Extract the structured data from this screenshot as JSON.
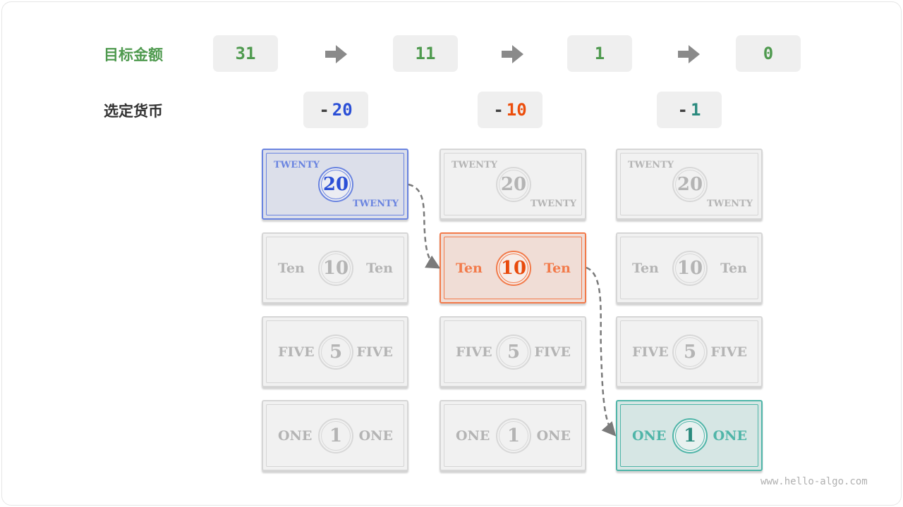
{
  "labels": {
    "target": "目标金额",
    "selected": "选定货币"
  },
  "targets": [
    "31",
    "11",
    "1",
    "0"
  ],
  "selections": [
    {
      "sign": "-",
      "value": "20",
      "color": "#2b4fd6"
    },
    {
      "sign": "-",
      "value": "10",
      "color": "#ec4e0c"
    },
    {
      "sign": "-",
      "value": "1",
      "color": "#2a8a7e"
    }
  ],
  "colors": {
    "target": "#4f9a4f",
    "label": "#333333",
    "arrow": "#8a8a8a",
    "box": "#efefef"
  },
  "denominations": [
    {
      "value": "20",
      "word": "TWENTY"
    },
    {
      "value": "10",
      "word": "Ten"
    },
    {
      "value": "5",
      "word": "FIVE"
    },
    {
      "value": "1",
      "word": "ONE"
    }
  ],
  "selected_bills": [
    {
      "column": 0,
      "denomination": "20",
      "theme": {
        "border": "#6a84e0",
        "bg": "#dcdfea",
        "text": "#6a84e0",
        "coin": "#2b4fd6"
      }
    },
    {
      "column": 1,
      "denomination": "10",
      "theme": {
        "border": "#f27a4a",
        "bg": "#f0ddd6",
        "text": "#f27a4a",
        "coin": "#e84a0c"
      }
    },
    {
      "column": 2,
      "denomination": "1",
      "theme": {
        "border": "#4fb5a8",
        "bg": "#d6e6e4",
        "text": "#4fb5a8",
        "coin": "#2a8a7e"
      }
    }
  ],
  "watermark": "www.hello-algo.com"
}
